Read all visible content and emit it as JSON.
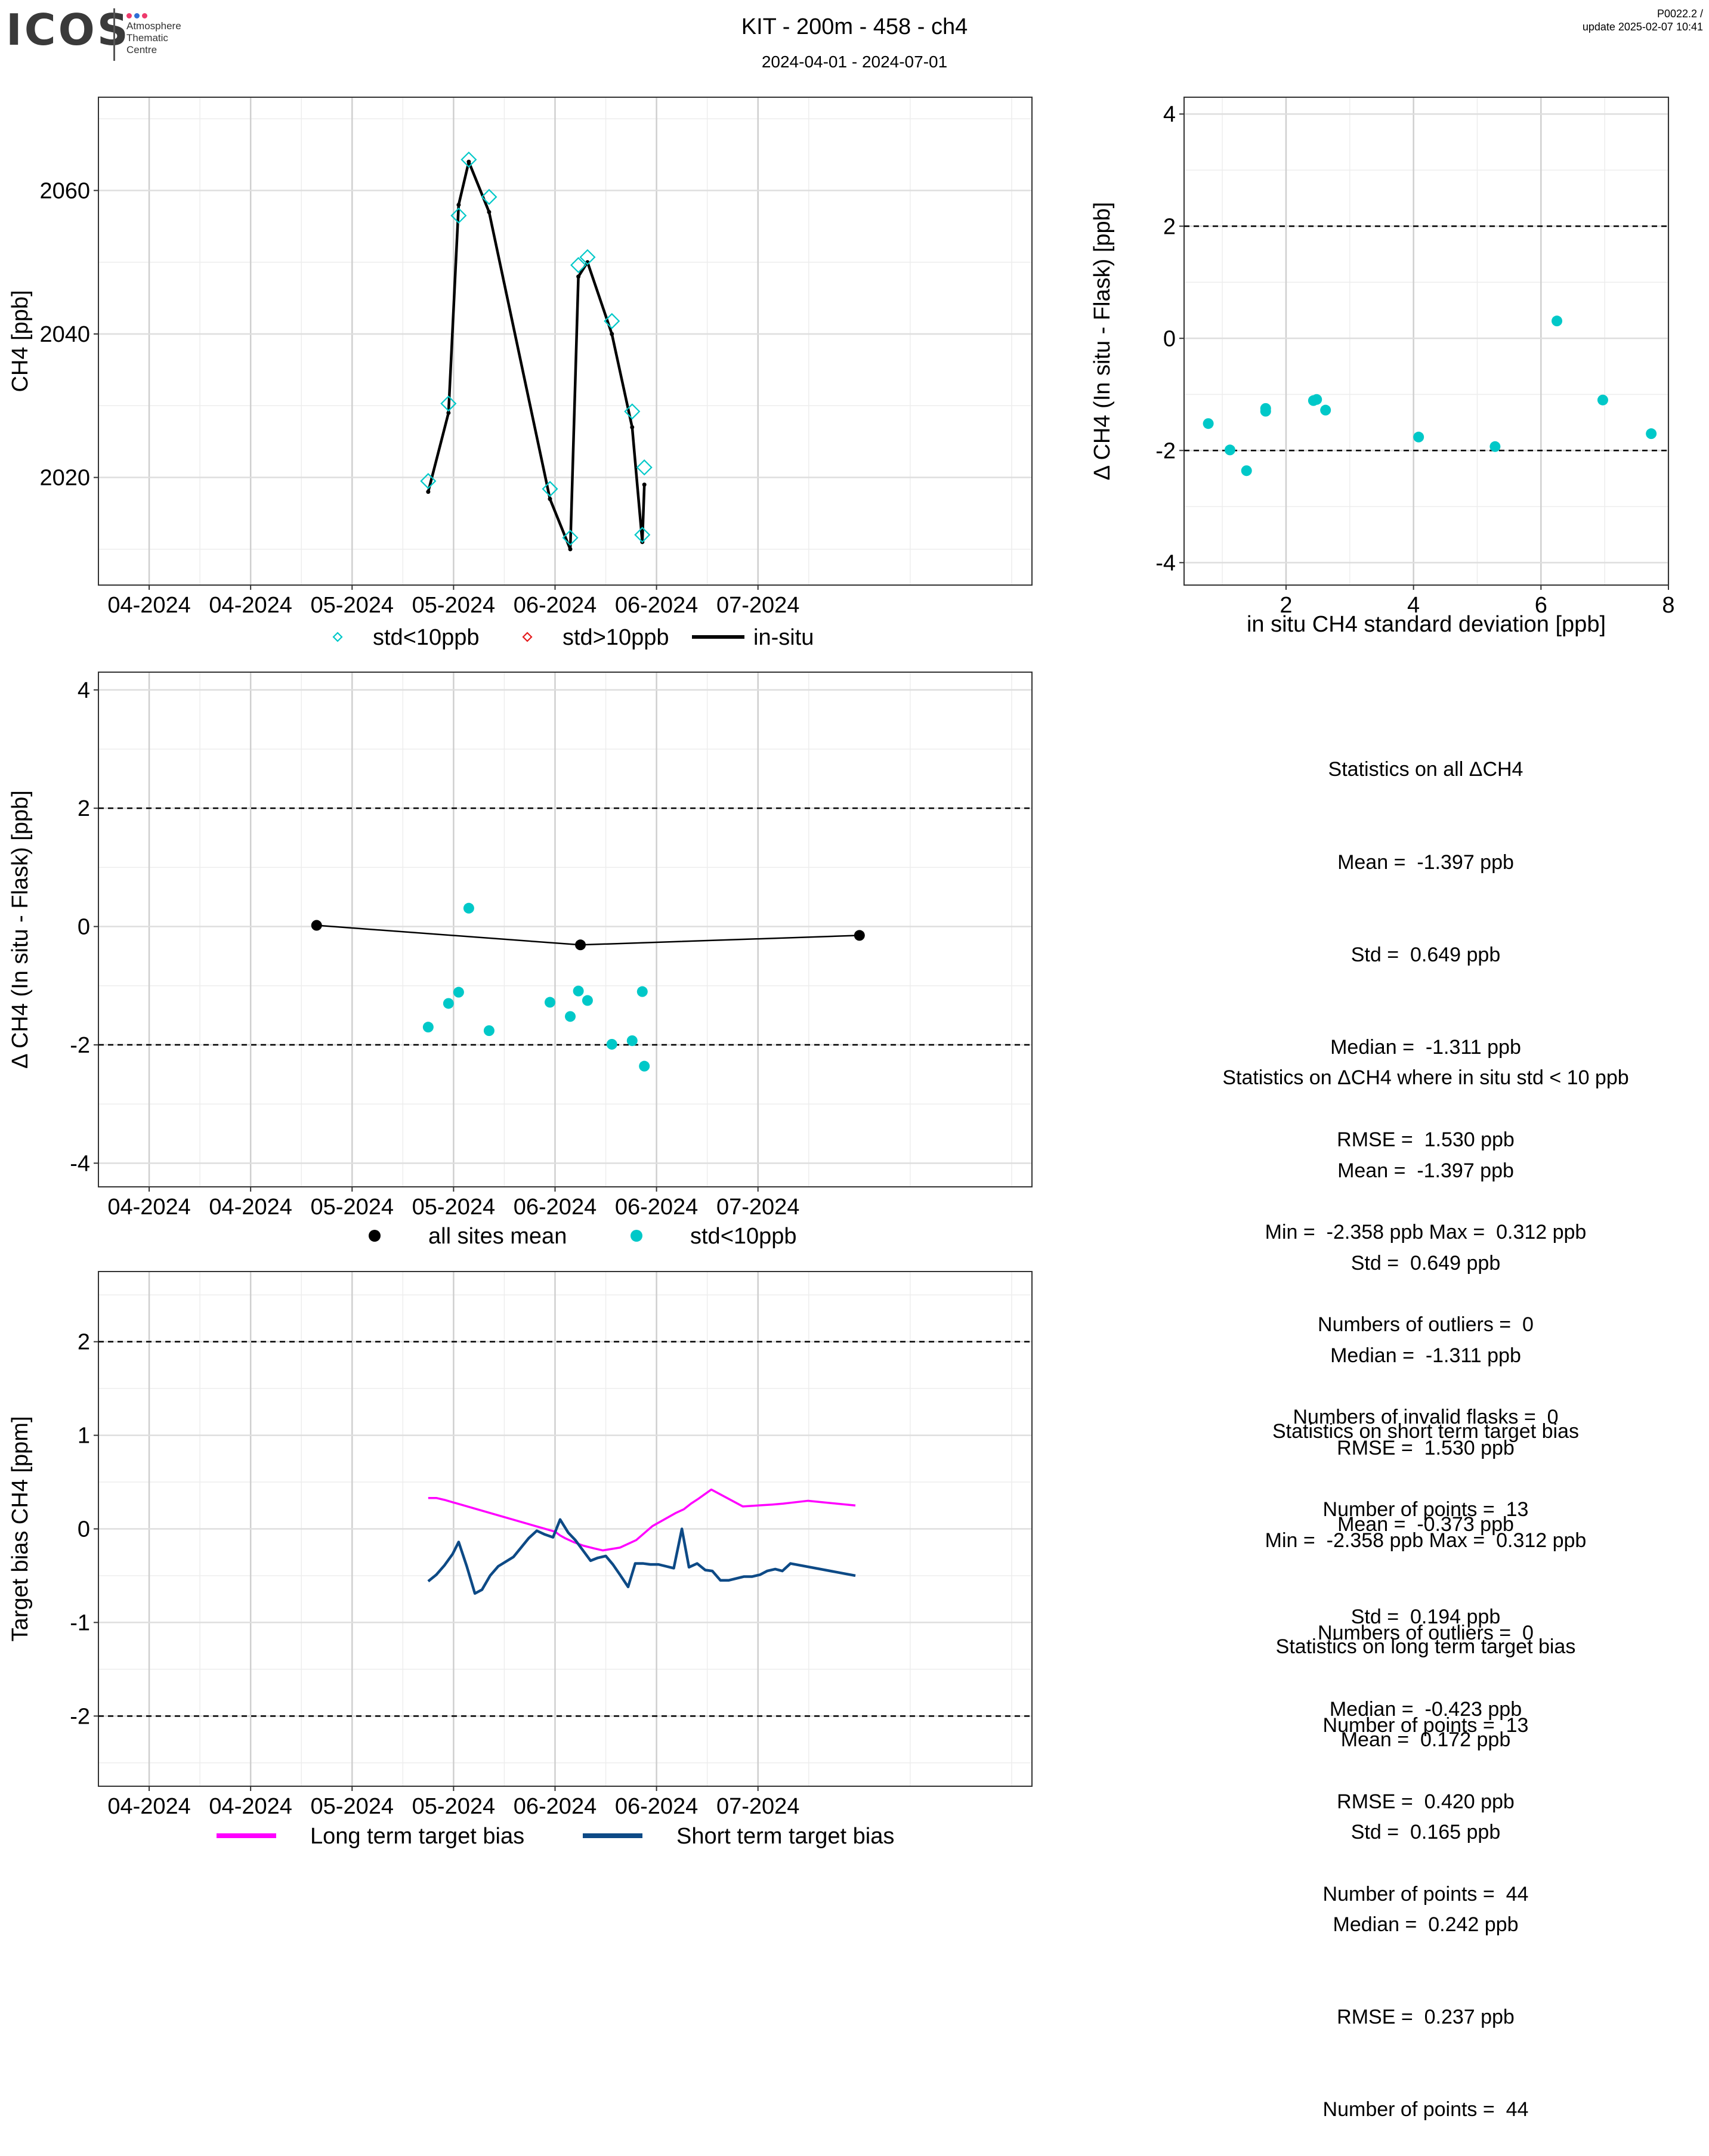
{
  "logo": {
    "text": "ICOS",
    "sub_lines": [
      "Atmosphere",
      "Thematic",
      "Centre"
    ],
    "dot_colors": [
      "#ee3a6c",
      "#2f6fd6",
      "#ee3a6c"
    ]
  },
  "header": {
    "title": "KIT - 200m - 458 - ch4",
    "subtitle": "2024-04-01 - 2024-07-01",
    "version": "P0022.2 /",
    "update": "update  2025-02-07 10:41"
  },
  "colors": {
    "cyan": "#00c8c8",
    "red": "#e41a1c",
    "black": "#000000",
    "magenta": "#ff00ff",
    "navy": "#0d4a86"
  },
  "chart_data": [
    {
      "id": "ts",
      "type": "line",
      "ylabel": "CH4 [ppb]",
      "xlim": [
        0,
        92
      ],
      "ylim": [
        2005,
        2073
      ],
      "yticks": [
        2020,
        2040,
        2060
      ],
      "xtick_positions": [
        5,
        15,
        25,
        35,
        45,
        55,
        65
      ],
      "xtick_labels": [
        "04-2024",
        "04-2024",
        "05-2024",
        "05-2024",
        "06-2024",
        "06-2024",
        "07-2024"
      ],
      "series": [
        {
          "name": "in-situ",
          "x": [
            32.5,
            34.5,
            35.5,
            36.5,
            38.5,
            44.5,
            46.5,
            47.3,
            48.2,
            50.6,
            52.6,
            53.6,
            53.8
          ],
          "y": [
            2018,
            2029,
            2058,
            2064,
            2057,
            2017,
            2010,
            2048,
            2050,
            2040,
            2027,
            2011,
            2019
          ]
        },
        {
          "name": "std<10ppb",
          "x": [
            32.5,
            34.5,
            35.5,
            36.5,
            38.5,
            44.5,
            46.5,
            47.3,
            48.2,
            50.6,
            52.6,
            53.6,
            53.8
          ],
          "y": [
            2019.5,
            2030.3,
            2056.5,
            2064.3,
            2059.1,
            2018.4,
            2011.6,
            2049.6,
            2050.7,
            2041.8,
            2029.2,
            2012.0,
            2021.4
          ]
        }
      ],
      "legend": [
        "std<10ppb",
        "std>10ppb",
        "in-situ"
      ]
    },
    {
      "id": "scatter",
      "type": "scatter",
      "xlabel": "in situ CH4 standard deviation [ppb]",
      "ylabel": "Δ CH4 (In situ - Flask) [ppb]",
      "xlim": [
        0.4,
        8.0
      ],
      "ylim": [
        -4.4,
        4.3
      ],
      "xticks": [
        2,
        4,
        6,
        8
      ],
      "yticks": [
        -4,
        -2,
        0,
        2,
        4
      ],
      "hlines": [
        2,
        -2
      ],
      "x": [
        0.78,
        1.12,
        1.38,
        1.68,
        1.68,
        2.43,
        2.48,
        2.62,
        4.08,
        5.28,
        6.25,
        6.97,
        7.73
      ],
      "y": [
        -1.52,
        -1.99,
        -2.36,
        -1.25,
        -1.3,
        -1.11,
        -1.09,
        -1.28,
        -1.76,
        -1.93,
        0.31,
        -1.1,
        -1.7
      ]
    },
    {
      "id": "delta",
      "type": "scatter",
      "ylabel": "Δ CH4 (In situ - Flask) [ppb]",
      "xlim": [
        0,
        92
      ],
      "ylim": [
        -4.4,
        4.3
      ],
      "yticks": [
        -4,
        -2,
        0,
        2,
        4
      ],
      "hlines": [
        2,
        -2
      ],
      "xtick_positions": [
        5,
        15,
        25,
        35,
        45,
        55,
        65
      ],
      "xtick_labels": [
        "04-2024",
        "04-2024",
        "05-2024",
        "05-2024",
        "06-2024",
        "06-2024",
        "07-2024"
      ],
      "series": [
        {
          "name": "all sites mean",
          "x": [
            21.5,
            47.5,
            75.0
          ],
          "y": [
            0.02,
            -0.31,
            -0.15
          ]
        },
        {
          "name": "std<10ppb",
          "x": [
            32.5,
            34.5,
            35.5,
            36.5,
            38.5,
            44.5,
            46.5,
            47.3,
            48.2,
            50.6,
            52.6,
            53.6,
            53.8
          ],
          "y": [
            -1.7,
            -1.3,
            -1.11,
            0.31,
            -1.76,
            -1.28,
            -1.52,
            -1.09,
            -1.25,
            -1.99,
            -1.93,
            -1.1,
            -2.36
          ]
        }
      ],
      "legend": [
        "all sites mean",
        "std<10ppb"
      ]
    },
    {
      "id": "bias",
      "type": "line",
      "ylabel": "Target bias CH4 [ppm]",
      "xlim": [
        0,
        92
      ],
      "ylim": [
        -2.75,
        2.75
      ],
      "yticks": [
        -2,
        -1,
        0,
        1,
        2
      ],
      "hlines": [
        2,
        -2
      ],
      "xtick_positions": [
        5,
        15,
        25,
        35,
        45,
        55,
        65
      ],
      "xtick_labels": [
        "04-2024",
        "04-2024",
        "05-2024",
        "05-2024",
        "06-2024",
        "06-2024",
        "07-2024"
      ],
      "series": [
        {
          "name": "Long term target bias",
          "x": [
            32.5,
            33.3,
            34.1,
            45.0,
            45.5,
            46.0,
            46.8,
            47.8,
            48.9,
            49.7,
            51.4,
            53.0,
            54.6,
            56.9,
            57.7,
            58.4,
            59.1,
            60.4,
            63.5,
            66.4,
            67.5,
            68.3,
            69.9,
            74.6
          ],
          "y": [
            0.33,
            0.33,
            0.31,
            -0.03,
            -0.07,
            -0.1,
            -0.14,
            -0.18,
            -0.21,
            -0.23,
            -0.2,
            -0.12,
            0.03,
            0.17,
            0.21,
            0.27,
            0.32,
            0.42,
            0.24,
            0.26,
            0.27,
            0.28,
            0.3,
            0.25
          ]
        },
        {
          "name": "Short term target bias",
          "x": [
            32.5,
            33.3,
            34.1,
            34.9,
            35.5,
            36.3,
            37.1,
            37.8,
            38.6,
            39.4,
            40.9,
            42.4,
            43.2,
            44.0,
            44.8,
            45.5,
            46.3,
            47.0,
            48.5,
            49.2,
            50.0,
            50.7,
            51.4,
            52.2,
            52.9,
            53.7,
            54.4,
            55.2,
            56.7,
            57.5,
            58.2,
            59.0,
            59.8,
            60.5,
            61.3,
            62.1,
            63.6,
            64.4,
            65.2,
            65.9,
            66.7,
            67.4,
            68.2,
            74.6
          ],
          "y": [
            -0.56,
            -0.49,
            -0.39,
            -0.27,
            -0.14,
            -0.4,
            -0.69,
            -0.65,
            -0.5,
            -0.4,
            -0.3,
            -0.1,
            -0.02,
            -0.06,
            -0.09,
            0.1,
            -0.04,
            -0.12,
            -0.34,
            -0.31,
            -0.29,
            -0.38,
            -0.49,
            -0.62,
            -0.37,
            -0.37,
            -0.38,
            -0.38,
            -0.42,
            0.0,
            -0.41,
            -0.37,
            -0.44,
            -0.45,
            -0.55,
            -0.55,
            -0.51,
            -0.51,
            -0.49,
            -0.45,
            -0.43,
            -0.45,
            -0.37,
            -0.5
          ]
        }
      ],
      "legend": [
        "Long term target bias",
        "Short term target bias"
      ]
    }
  ],
  "stats": {
    "all": {
      "title": "Statistics on all ΔCH4",
      "lines": [
        "Mean =  -1.397 ppb",
        "Std =  0.649 ppb",
        "Median =  -1.311 ppb",
        "RMSE =  1.530 ppb",
        "Min =  -2.358 ppb Max =  0.312 ppb",
        "Numbers of outliers =  0",
        "Numbers of invalid flasks =  0",
        "Number of points =  13"
      ]
    },
    "std": {
      "title": "Statistics on ΔCH4 where in situ std < 10 ppb",
      "lines": [
        "Mean =  -1.397 ppb",
        "Std =  0.649 ppb",
        "Median =  -1.311 ppb",
        "RMSE =  1.530 ppb",
        "Min =  -2.358 ppb Max =  0.312 ppb",
        "Numbers of outliers =  0",
        "Number of points =  13"
      ]
    },
    "short": {
      "title": "Statistics on short term target bias",
      "lines": [
        "Mean =  -0.373 ppb",
        "Std =  0.194 ppb",
        "Median =  -0.423 ppb",
        "RMSE =  0.420 ppb",
        "Number of points =  44"
      ]
    },
    "long": {
      "title": "Statistics on long term target bias",
      "lines": [
        "Mean =  0.172 ppb",
        "Std =  0.165 ppb",
        "Median =  0.242 ppb",
        "RMSE =  0.237 ppb",
        "Number of points =  44"
      ]
    }
  }
}
